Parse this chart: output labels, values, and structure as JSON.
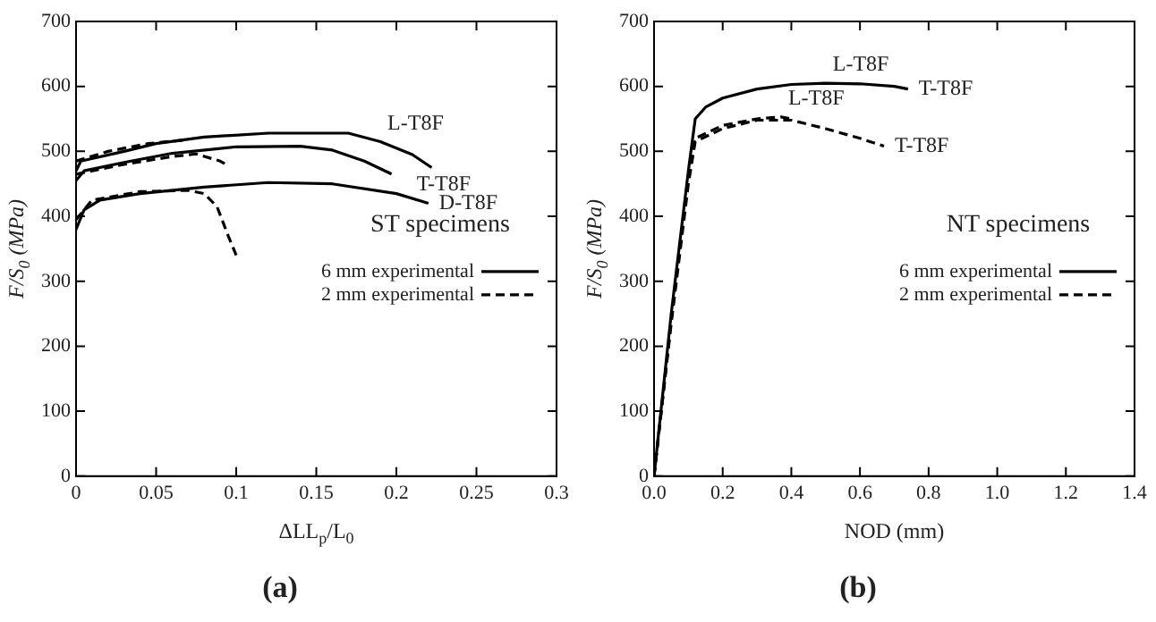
{
  "chart_data": [
    {
      "type": "line",
      "title": "(a)",
      "xlabel": "ΔLL$_{p}$/L$_{0}$",
      "ylabel": "F/S$_{0}$ (MPa)",
      "legend_title": "ST specimens",
      "legend": "center right",
      "marker": "none",
      "grid": false,
      "xlim": [
        0,
        0.3
      ],
      "ylim": [
        0,
        700
      ],
      "xticks": [
        0,
        0.05,
        0.1,
        0.15,
        0.2,
        0.25,
        0.3
      ],
      "yticks": [
        0,
        100,
        200,
        300,
        400,
        500,
        600,
        700
      ],
      "series": [
        {
          "name": "6 mm experimental",
          "color": "#000000",
          "line_style": "solid",
          "x": [
            0,
            0.003,
            0.03,
            0.05,
            0.08,
            0.12,
            0.17,
            0.19,
            0.21,
            0.222
          ],
          "values": [
            470,
            485,
            500,
            512,
            522,
            528,
            528,
            515,
            495,
            475
          ]
        },
        {
          "color": "#000000",
          "line_style": "solid",
          "x": [
            0,
            0.005,
            0.03,
            0.06,
            0.1,
            0.14,
            0.16,
            0.18,
            0.197
          ],
          "values": [
            455,
            470,
            483,
            497,
            507,
            508,
            502,
            485,
            465
          ]
        },
        {
          "color": "#000000",
          "line_style": "solid",
          "x": [
            0,
            0.005,
            0.015,
            0.04,
            0.08,
            0.12,
            0.16,
            0.2,
            0.22
          ],
          "values": [
            380,
            410,
            425,
            435,
            445,
            452,
            450,
            435,
            420
          ]
        },
        {
          "name": "2 mm experimental",
          "color": "#000000",
          "line_style": "dashed",
          "x": [
            0,
            0.02,
            0.045,
            0.07
          ],
          "values": [
            485,
            500,
            512,
            518
          ]
        },
        {
          "color": "#000000",
          "line_style": "dashed",
          "x": [
            0,
            0.03,
            0.06,
            0.075,
            0.09,
            0.095
          ],
          "values": [
            465,
            480,
            492,
            496,
            485,
            478
          ]
        },
        {
          "color": "#000000",
          "line_style": "dashed",
          "x": [
            0,
            0.01,
            0.04,
            0.07,
            0.08,
            0.088,
            0.095,
            0.1
          ],
          "values": [
            395,
            425,
            438,
            440,
            435,
            415,
            370,
            340
          ]
        }
      ],
      "annotations": [
        {
          "text": "L-T8F",
          "x": 0.19,
          "y": 515
        },
        {
          "text": "T-T8F",
          "x": 0.197,
          "y": 465
        },
        {
          "text": "D-T8F",
          "x": 0.22,
          "y": 420
        }
      ]
    },
    {
      "type": "line",
      "title": "(b)",
      "xlabel": "NOD (mm)",
      "ylabel": "F/S$_{0}$ (MPa)",
      "legend_title": "NT specimens",
      "legend": "center right",
      "marker": "none",
      "grid": false,
      "xlim": [
        0,
        1.4
      ],
      "ylim": [
        0,
        700
      ],
      "xticks": [
        {
          "value": 0,
          "label": "0.0"
        },
        {
          "value": 0.2,
          "label": "0.2"
        },
        {
          "value": 0.4,
          "label": "0.4"
        },
        {
          "value": 0.6,
          "label": "0.6"
        },
        {
          "value": 0.8,
          "label": "0.8"
        },
        {
          "value": 1,
          "label": "1.0"
        },
        {
          "value": 1.2,
          "label": "1.2"
        },
        {
          "value": 1.4,
          "label": "1.4"
        }
      ],
      "yticks": [
        0,
        100,
        200,
        300,
        400,
        500,
        600,
        700
      ],
      "series": [
        {
          "name": "6 mm experimental",
          "color": "#000000",
          "line_style": "solid",
          "x": [
            0,
            0.05,
            0.1,
            0.12,
            0.15,
            0.2,
            0.3,
            0.4,
            0.5,
            0.6,
            0.7,
            0.74
          ],
          "values": [
            0,
            250,
            470,
            550,
            568,
            582,
            596,
            603,
            605,
            604,
            600,
            596
          ]
        },
        {
          "name": "2 mm experimental",
          "color": "#000000",
          "line_style": "dashed",
          "x": [
            0,
            0.05,
            0.1,
            0.12,
            0.2,
            0.3,
            0.37,
            0.4
          ],
          "values": [
            0,
            240,
            460,
            520,
            540,
            550,
            553,
            550
          ]
        },
        {
          "color": "#000000",
          "line_style": "dashed",
          "x": [
            0,
            0.05,
            0.1,
            0.12,
            0.2,
            0.3,
            0.4,
            0.5,
            0.6,
            0.67
          ],
          "values": [
            0,
            235,
            450,
            515,
            535,
            548,
            548,
            535,
            520,
            508
          ]
        }
      ],
      "annotations": [
        {
          "text": "L-T8F",
          "x": 0.5,
          "y": 605
        },
        {
          "text": "T-T8F",
          "x": 0.74,
          "y": 596
        },
        {
          "text": "L-T8F",
          "x": 0.37,
          "y": 553
        },
        {
          "text": "T-T8F",
          "x": 0.67,
          "y": 508
        }
      ]
    }
  ]
}
